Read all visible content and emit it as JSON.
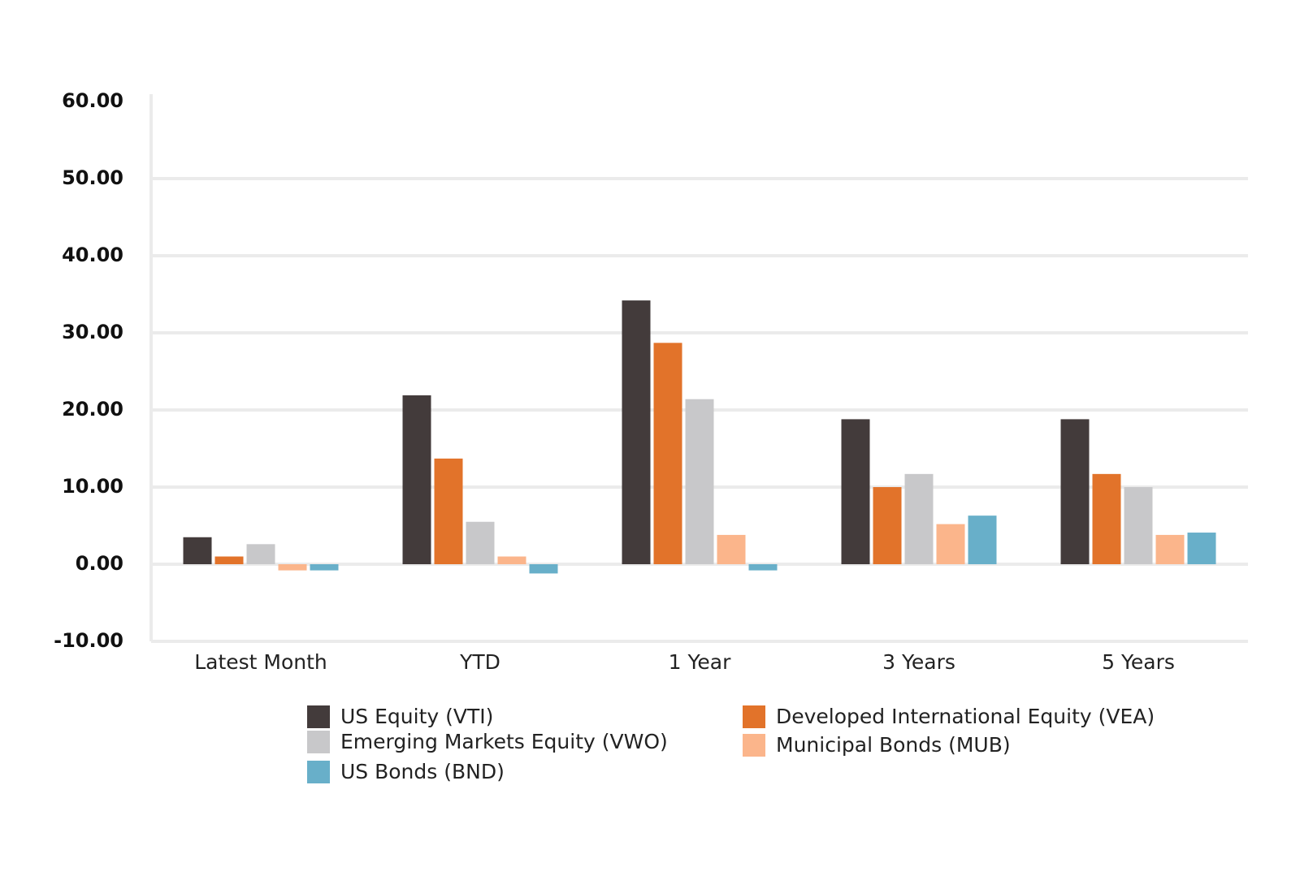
{
  "chart_data": {
    "type": "bar",
    "categories": [
      "Latest Month",
      "YTD",
      "1 Year",
      "3 Years",
      "5 Years"
    ],
    "series": [
      {
        "name": "US Equity (VTI)",
        "color": "#433b3b",
        "values": [
          3.5,
          21.9,
          34.2,
          18.8,
          18.8
        ]
      },
      {
        "name": "Developed International Equity (VEA)",
        "color": "#e2732a",
        "values": [
          1.0,
          13.7,
          28.7,
          10.0,
          11.7
        ]
      },
      {
        "name": "Emerging Markets Equity (VWO)",
        "color": "#c8c8ca",
        "values": [
          2.6,
          5.5,
          21.4,
          11.7,
          10.0
        ]
      },
      {
        "name": "Municipal Bonds (MUB)",
        "color": "#fbb58b",
        "values": [
          -0.8,
          1.0,
          3.8,
          5.2,
          3.8
        ]
      },
      {
        "name": "US Bonds (BND)",
        "color": "#68afc9",
        "values": [
          -0.8,
          -1.2,
          -0.8,
          6.3,
          4.1
        ]
      }
    ],
    "yticks": [
      "60.00",
      "50.00",
      "40.00",
      "30.00",
      "20.00",
      "10.00",
      "0.00",
      "-10.00"
    ],
    "ylim": [
      -10,
      60
    ],
    "xlabel": "",
    "ylabel": "",
    "title": "",
    "grid": true,
    "legend_position": "bottom"
  }
}
